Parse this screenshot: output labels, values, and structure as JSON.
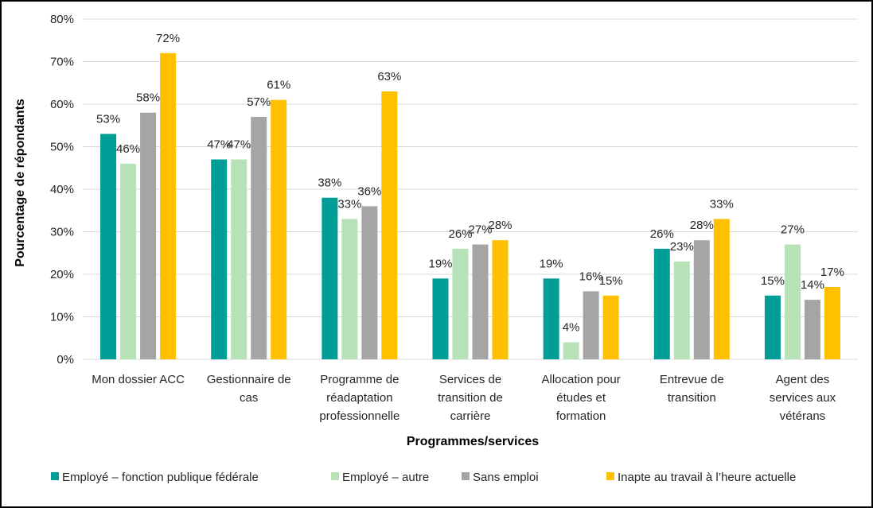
{
  "chart_data": {
    "type": "bar",
    "title": "",
    "xlabel": "Programmes/services",
    "ylabel": "Pourcentage de répondants",
    "ylim": [
      0,
      80
    ],
    "yticks": [
      "0%",
      "10%",
      "20%",
      "30%",
      "40%",
      "50%",
      "60%",
      "70%",
      "80%"
    ],
    "grid": true,
    "legend_position": "bottom",
    "categories": [
      [
        "Mon dossier ACC"
      ],
      [
        "Gestionnaire de",
        "cas"
      ],
      [
        "Programme de",
        "réadaptation",
        "professionnelle"
      ],
      [
        "Services de",
        "transition de",
        "carrière"
      ],
      [
        "Allocation pour",
        "études et",
        "formation"
      ],
      [
        "Entrevue de",
        "transition"
      ],
      [
        "Agent des",
        "services aux",
        "vétérans"
      ]
    ],
    "series": [
      {
        "name": "Employé – fonction publique fédérale",
        "color": "#009E97",
        "values": [
          53,
          47,
          38,
          19,
          19,
          26,
          15
        ],
        "labels": [
          "53%",
          "47%",
          "38%",
          "19%",
          "19%",
          "26%",
          "15%"
        ]
      },
      {
        "name": "Employé – autre",
        "color": "#B7E2B7",
        "values": [
          46,
          47,
          33,
          26,
          4,
          23,
          27
        ],
        "labels": [
          "46%",
          "47%",
          "33%",
          "26%",
          "4%",
          "23%",
          "27%"
        ]
      },
      {
        "name": "Sans emploi",
        "color": "#A5A5A5",
        "values": [
          58,
          57,
          36,
          27,
          16,
          28,
          14
        ],
        "labels": [
          "58%",
          "57%",
          "36%",
          "27%",
          "16%",
          "28%",
          "14%"
        ]
      },
      {
        "name": "Inapte au travail à l’heure actuelle",
        "color": "#FFC000",
        "values": [
          72,
          61,
          63,
          28,
          15,
          33,
          17
        ],
        "labels": [
          "72%",
          "61%",
          "63%",
          "28%",
          "15%",
          "33%",
          "17%"
        ]
      }
    ]
  }
}
